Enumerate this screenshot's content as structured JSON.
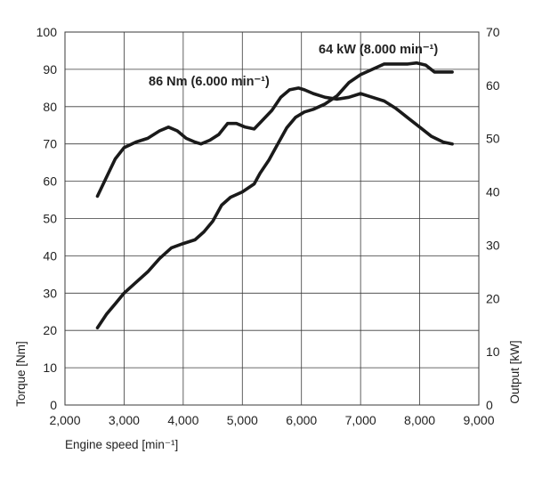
{
  "chart_data": {
    "type": "line",
    "xlabel": "Engine speed [min⁻¹]",
    "ylabel": "Torque [Nm]",
    "y2label": "Output [kW]",
    "xlim": [
      2000,
      9000
    ],
    "ylim": [
      0,
      100
    ],
    "y2lim": [
      0,
      70
    ],
    "x_ticks": [
      "2,000",
      "3,000",
      "4,000",
      "5,000",
      "6,000",
      "7,000",
      "8,000",
      "9,000"
    ],
    "y_ticks": [
      "0",
      "10",
      "20",
      "30",
      "40",
      "50",
      "60",
      "70",
      "80",
      "90",
      "100"
    ],
    "y2_ticks": [
      "0",
      "10",
      "20",
      "30",
      "40",
      "50",
      "60",
      "70"
    ],
    "grid": true,
    "annotations": {
      "torque_peak": "86 Nm (6.000 min⁻¹)",
      "power_peak": "64 kW (8.000 min⁻¹)"
    },
    "series": [
      {
        "axis": "left",
        "x": [
          2550,
          2700,
          2850,
          3000,
          3200,
          3400,
          3600,
          3750,
          3900,
          4050,
          4200,
          4300,
          4450,
          4600,
          4750,
          4900,
          5050,
          5200,
          5350,
          5500,
          5650,
          5800,
          5950,
          6050,
          6200,
          6400,
          6600,
          6800,
          7000,
          7200,
          7400,
          7600,
          7800,
          8000,
          8200,
          8400,
          8550
        ],
        "y": [
          56,
          61,
          66,
          69,
          70.5,
          71.5,
          73.5,
          74.5,
          73.5,
          71.5,
          70.5,
          70,
          71,
          72.5,
          75.5,
          75.5,
          74.5,
          74,
          76.5,
          79,
          82.5,
          84.5,
          85,
          84.5,
          83.5,
          82.5,
          82,
          82.5,
          83.5,
          82.5,
          81.5,
          79.5,
          77,
          74.5,
          72,
          70.5,
          70
        ]
      },
      {
        "axis": "right",
        "x": [
          2550,
          2700,
          2850,
          3000,
          3200,
          3400,
          3600,
          3800,
          4000,
          4200,
          4350,
          4500,
          4650,
          4800,
          5000,
          5200,
          5300,
          5450,
          5600,
          5750,
          5900,
          6050,
          6200,
          6400,
          6600,
          6800,
          7000,
          7200,
          7400,
          7600,
          7800,
          7950,
          8100,
          8250,
          8400,
          8550
        ],
        "y": [
          14.5,
          17,
          19,
          21,
          23,
          25,
          27.5,
          29.5,
          30.3,
          31,
          32.5,
          34.5,
          37.5,
          39,
          40,
          41.5,
          43.5,
          46,
          49,
          52,
          54,
          55,
          55.5,
          56.5,
          58,
          60.5,
          62,
          63,
          64,
          64,
          64,
          64.2,
          63.8,
          62.5,
          62.5,
          62.5
        ]
      }
    ]
  }
}
